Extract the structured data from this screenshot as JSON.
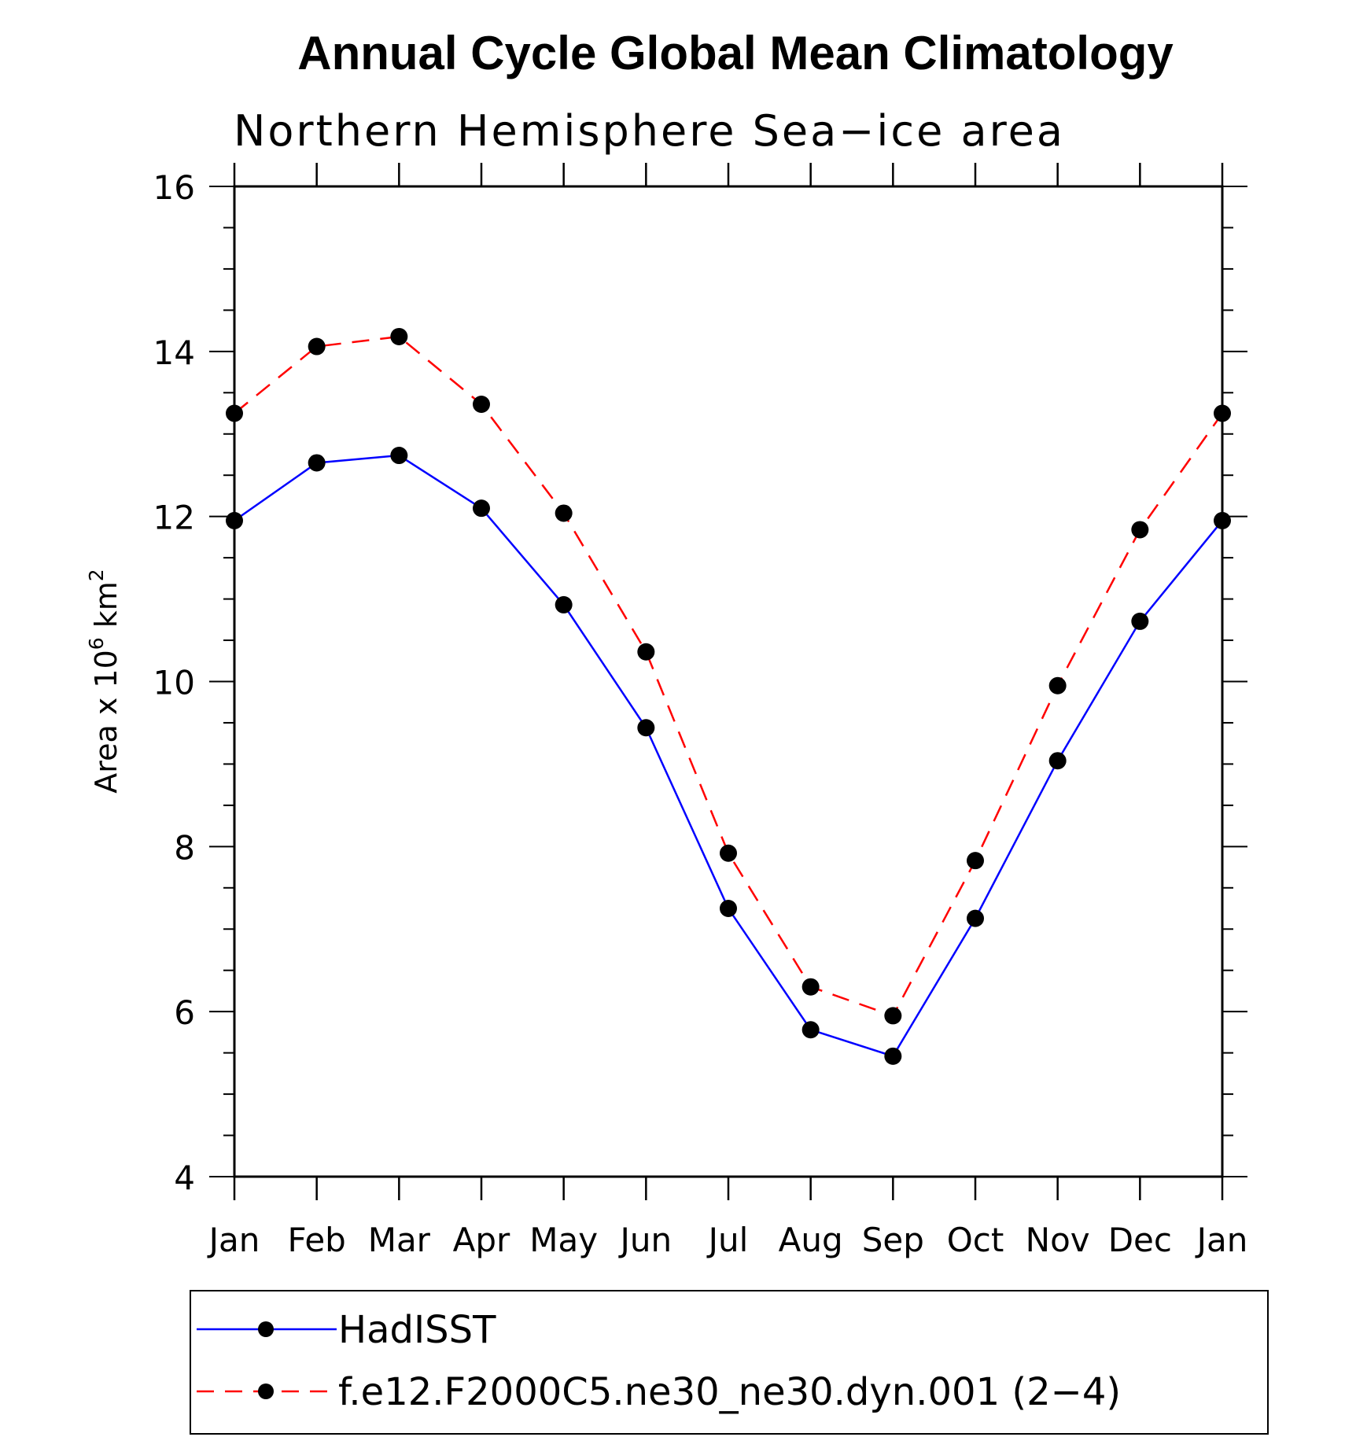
{
  "chart_data": {
    "type": "line",
    "title": "Annual Cycle Global Mean Climatology",
    "subtitle": "Northern Hemisphere Sea−ice area",
    "ylabel": {
      "prefix": "Area x 10",
      "exp": "6",
      "unit": " km",
      "unit_exp": "2"
    },
    "categories": [
      "Jan",
      "Feb",
      "Mar",
      "Apr",
      "May",
      "Jun",
      "Jul",
      "Aug",
      "Sep",
      "Oct",
      "Nov",
      "Dec",
      "Jan"
    ],
    "ylim": [
      4,
      16
    ],
    "yticks": [
      "4",
      "6",
      "8",
      "10",
      "12",
      "14",
      "16"
    ],
    "series": [
      {
        "name": "HadISST",
        "color": "#0000ff",
        "dash": "solid",
        "values": [
          11.95,
          12.65,
          12.74,
          12.1,
          10.93,
          9.44,
          7.25,
          5.78,
          5.46,
          7.13,
          9.04,
          10.73,
          11.95
        ]
      },
      {
        "name": "f.e12.F2000C5.ne30_ne30.dyn.001 (2−4)",
        "color": "#ff0000",
        "dash": "dashed",
        "values": [
          13.25,
          14.06,
          14.18,
          13.36,
          12.04,
          10.36,
          7.92,
          6.3,
          5.95,
          7.83,
          9.95,
          11.84,
          13.25
        ]
      }
    ],
    "legend_position": "bottom",
    "marker_color": "#000000"
  }
}
